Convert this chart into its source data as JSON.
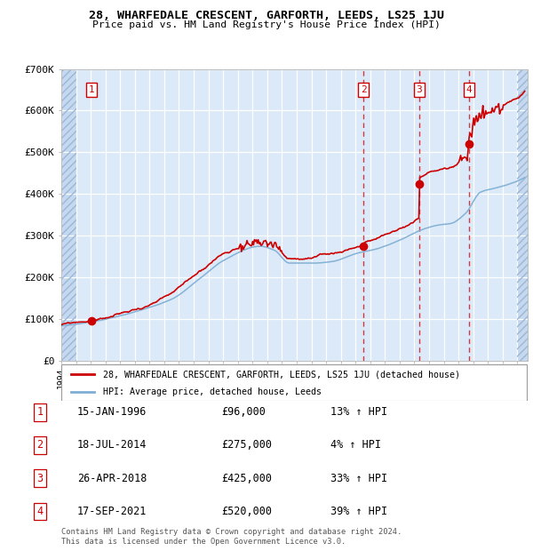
{
  "title1": "28, WHARFEDALE CRESCENT, GARFORTH, LEEDS, LS25 1JU",
  "title2": "Price paid vs. HM Land Registry's House Price Index (HPI)",
  "legend_label_red": "28, WHARFEDALE CRESCENT, GARFORTH, LEEDS, LS25 1JU (detached house)",
  "legend_label_blue": "HPI: Average price, detached house, Leeds",
  "transactions": [
    {
      "num": 1,
      "date": "15-JAN-1996",
      "price": 96000,
      "hpi_pct": "13%",
      "year_x": 1996.04
    },
    {
      "num": 2,
      "date": "18-JUL-2014",
      "price": 275000,
      "hpi_pct": "4%",
      "year_x": 2014.54
    },
    {
      "num": 3,
      "date": "26-APR-2018",
      "price": 425000,
      "hpi_pct": "33%",
      "year_x": 2018.32
    },
    {
      "num": 4,
      "date": "17-SEP-2021",
      "price": 520000,
      "hpi_pct": "39%",
      "year_x": 2021.71
    }
  ],
  "footnote1": "Contains HM Land Registry data © Crown copyright and database right 2024.",
  "footnote2": "This data is licensed under the Open Government Licence v3.0.",
  "bg_color": "#dce9f8",
  "grid_color": "#ffffff",
  "red_line_color": "#cc0000",
  "blue_line_color": "#7fafd4",
  "ylim": [
    0,
    700000
  ],
  "xlim_start": 1994.0,
  "xlim_end": 2025.7,
  "hatch_left_end": 1995.0,
  "hatch_right_start": 2025.0
}
